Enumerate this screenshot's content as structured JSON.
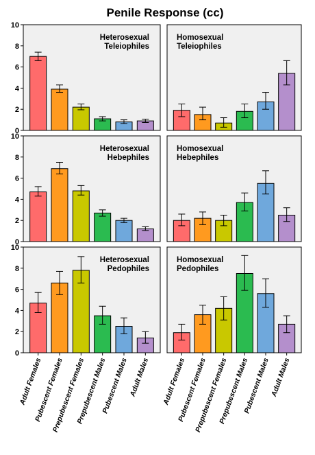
{
  "chart_data": {
    "type": "bar",
    "title": "Penile Response (cc)",
    "xlabel": "",
    "ylabel": "",
    "ylim": [
      0,
      10
    ],
    "yticks": [
      0,
      2,
      4,
      6,
      8,
      10
    ],
    "grid": false,
    "categories": [
      "Adult Females",
      "Pubescent Females",
      "Prepubescent Females",
      "Prepubescent Males",
      "Pubescent Males",
      "Adult Males"
    ],
    "category_colors": [
      "#ff6b6b",
      "#ff9a1f",
      "#c9c800",
      "#2bbb50",
      "#6fa8dc",
      "#b48fcc"
    ],
    "panels": [
      {
        "label_line1": "Heterosexual",
        "label_line2": "Teleiophiles",
        "label_side": "right",
        "values": [
          7.0,
          3.9,
          2.2,
          1.1,
          0.8,
          0.9
        ],
        "err_low": [
          6.6,
          3.6,
          1.95,
          0.9,
          0.65,
          0.75
        ],
        "err_high": [
          7.4,
          4.3,
          2.5,
          1.3,
          1.0,
          1.05
        ]
      },
      {
        "label_line1": "Homosexual",
        "label_line2": "Teleiophiles",
        "label_side": "left",
        "values": [
          1.9,
          1.5,
          0.7,
          1.8,
          2.7,
          5.4
        ],
        "err_low": [
          1.3,
          1.0,
          0.3,
          1.2,
          2.0,
          4.3
        ],
        "err_high": [
          2.5,
          2.2,
          1.2,
          2.5,
          3.6,
          6.6
        ]
      },
      {
        "label_line1": "Heterosexual",
        "label_line2": "Hebephiles",
        "label_side": "right",
        "values": [
          4.7,
          6.9,
          4.8,
          2.7,
          2.0,
          1.2
        ],
        "err_low": [
          4.3,
          6.4,
          4.4,
          2.4,
          1.8,
          1.05
        ],
        "err_high": [
          5.2,
          7.5,
          5.3,
          3.0,
          2.2,
          1.4
        ]
      },
      {
        "label_line1": "Homosexual",
        "label_line2": "Hebephiles",
        "label_side": "left",
        "values": [
          2.0,
          2.2,
          2.0,
          3.7,
          5.5,
          2.5
        ],
        "err_low": [
          1.5,
          1.6,
          1.5,
          2.9,
          4.5,
          1.9
        ],
        "err_high": [
          2.6,
          2.8,
          2.5,
          4.6,
          6.7,
          3.2
        ]
      },
      {
        "label_line1": "Heterosexual",
        "label_line2": "Pedophiles",
        "label_side": "right",
        "values": [
          4.7,
          6.6,
          7.8,
          3.5,
          2.5,
          1.4
        ],
        "err_low": [
          3.8,
          5.5,
          6.6,
          2.7,
          1.8,
          0.9
        ],
        "err_high": [
          5.7,
          7.7,
          9.1,
          4.4,
          3.3,
          2.0
        ]
      },
      {
        "label_line1": "Homosexual",
        "label_line2": "Pedophiles",
        "label_side": "left",
        "values": [
          1.9,
          3.6,
          4.2,
          7.5,
          5.6,
          2.7
        ],
        "err_low": [
          1.2,
          2.7,
          3.1,
          5.9,
          4.3,
          1.9
        ],
        "err_high": [
          2.7,
          4.5,
          5.3,
          9.2,
          7.0,
          3.5
        ]
      }
    ],
    "plot_background": "#f0f0f0",
    "bar_edge": "#000000"
  }
}
